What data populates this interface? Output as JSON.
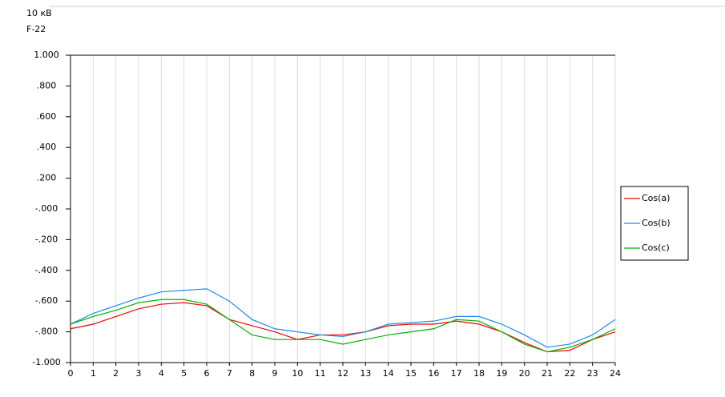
{
  "chart_data": {
    "type": "line",
    "title": "10 кВ",
    "subtitle": "F-22",
    "x": [
      0,
      1,
      2,
      3,
      4,
      5,
      6,
      7,
      8,
      9,
      10,
      11,
      12,
      13,
      14,
      15,
      16,
      17,
      18,
      19,
      20,
      21,
      22,
      23,
      24
    ],
    "series": [
      {
        "name": "Cos(a)",
        "color": "#ff0000",
        "values": [
          -0.78,
          -0.75,
          -0.7,
          -0.65,
          -0.62,
          -0.61,
          -0.63,
          -0.72,
          -0.76,
          -0.8,
          -0.85,
          -0.82,
          -0.82,
          -0.8,
          -0.76,
          -0.75,
          -0.75,
          -0.73,
          -0.75,
          -0.8,
          -0.87,
          -0.93,
          -0.92,
          -0.85,
          -0.8
        ]
      },
      {
        "name": "Cos(b)",
        "color": "#1e8ce6",
        "values": [
          -0.75,
          -0.68,
          -0.63,
          -0.58,
          -0.54,
          -0.53,
          -0.52,
          -0.6,
          -0.72,
          -0.78,
          -0.8,
          -0.82,
          -0.83,
          -0.8,
          -0.75,
          -0.74,
          -0.73,
          -0.7,
          -0.7,
          -0.75,
          -0.82,
          -0.9,
          -0.88,
          -0.82,
          -0.72
        ]
      },
      {
        "name": "Cos(c)",
        "color": "#00b000",
        "values": [
          -0.75,
          -0.7,
          -0.66,
          -0.61,
          -0.59,
          -0.59,
          -0.62,
          -0.72,
          -0.82,
          -0.85,
          -0.85,
          -0.85,
          -0.88,
          -0.85,
          -0.82,
          -0.8,
          -0.78,
          -0.72,
          -0.73,
          -0.8,
          -0.88,
          -0.93,
          -0.9,
          -0.85,
          -0.78
        ]
      }
    ],
    "xlim": [
      0,
      24
    ],
    "xticks": [
      0,
      1,
      2,
      3,
      4,
      5,
      6,
      7,
      8,
      9,
      10,
      11,
      12,
      13,
      14,
      15,
      16,
      17,
      18,
      19,
      20,
      21,
      22,
      23,
      24
    ],
    "ylim": [
      -1,
      1
    ],
    "yticks": [
      {
        "value": 1,
        "label": "1.000"
      },
      {
        "value": 0.8,
        "label": ".800"
      },
      {
        "value": 0.6,
        "label": ".600"
      },
      {
        "value": 0.4,
        "label": ".400"
      },
      {
        "value": 0.2,
        "label": ".200"
      },
      {
        "value": 0,
        "label": "-.000"
      },
      {
        "value": -0.2,
        "label": "-.200"
      },
      {
        "value": -0.4,
        "label": "-.400"
      },
      {
        "value": -0.6,
        "label": "-.600"
      },
      {
        "value": -0.8,
        "label": "-.800"
      },
      {
        "value": -1,
        "label": "-1.000"
      }
    ],
    "grid": true,
    "legend": "right"
  }
}
